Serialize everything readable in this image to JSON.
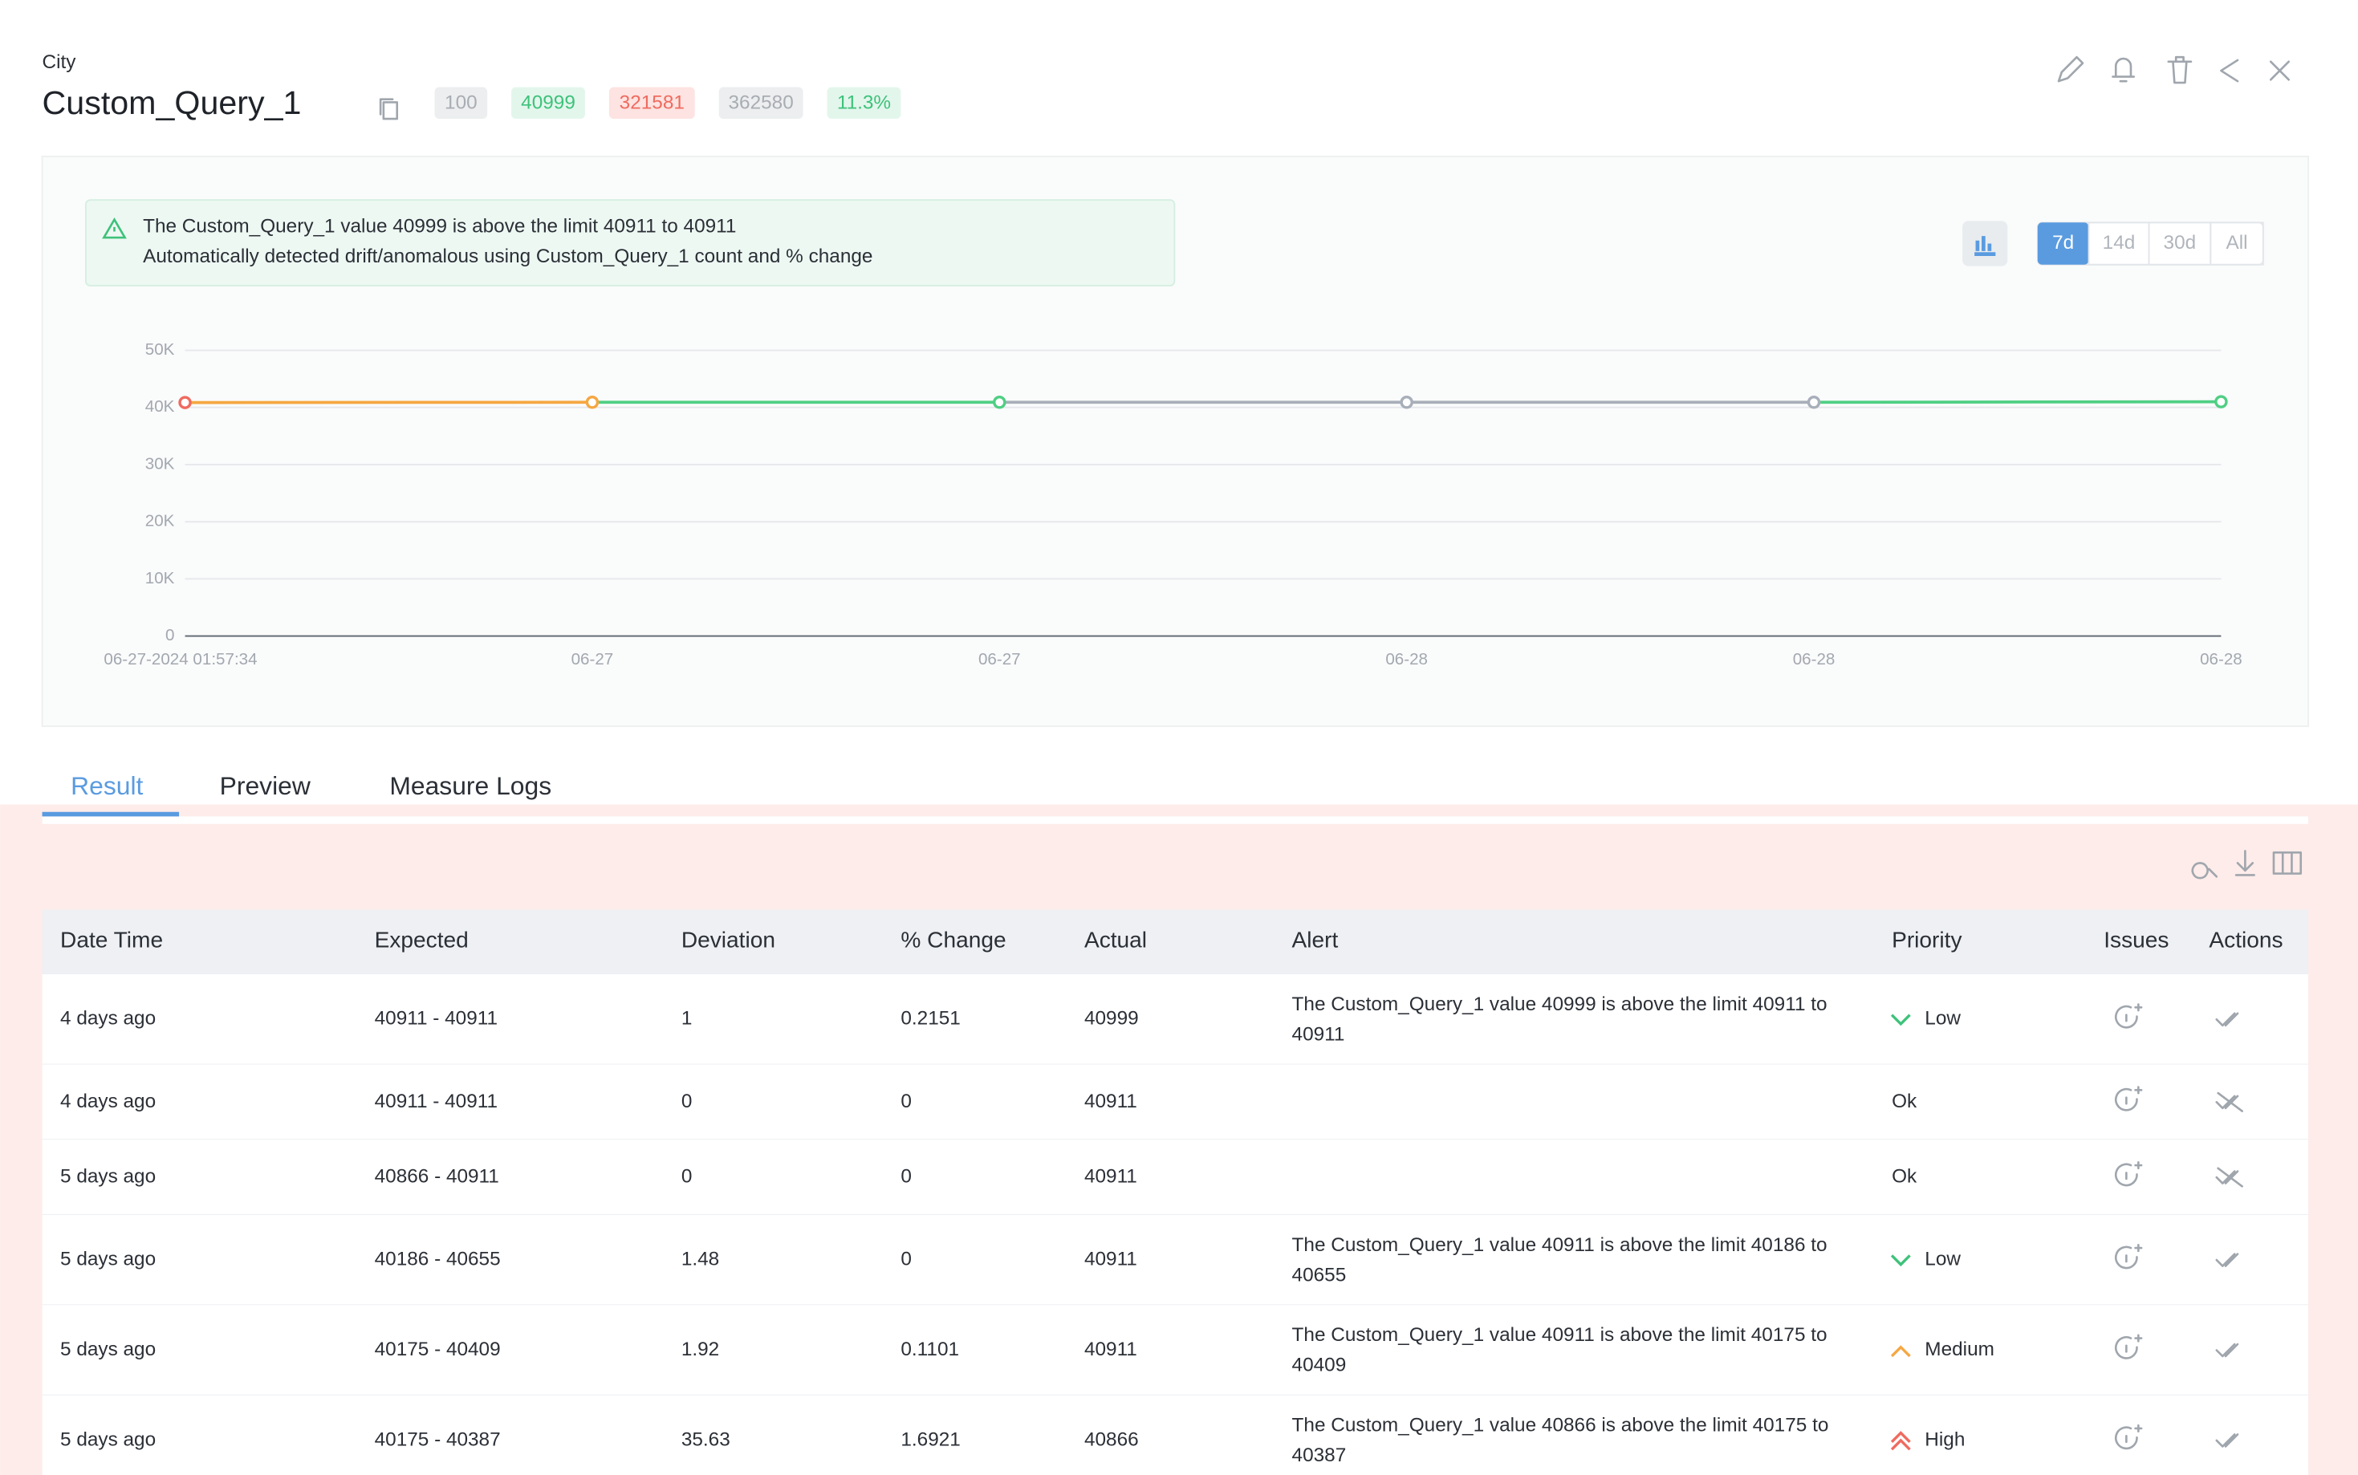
{
  "header": {
    "category": "City",
    "title": "Custom_Query_1",
    "badges": [
      "100",
      "40999",
      "321581",
      "362580",
      "11.3%"
    ]
  },
  "alert": {
    "lines": [
      "The Custom_Query_1 value 40999 is above the limit 40911 to 40911",
      "Automatically detected drift/anomalous using Custom_Query_1 count and % change"
    ]
  },
  "range_buttons": [
    "7d",
    "14d",
    "30d",
    "All"
  ],
  "chart_data": {
    "type": "line",
    "categories": [
      "06-27-2024 01:57:34",
      "06-27",
      "06-27",
      "06-28",
      "06-28",
      "06-28"
    ],
    "series": [
      {
        "values": [
          40866,
          40911,
          40911,
          40911,
          40911,
          40999
        ],
        "point_colors": [
          "#ef6b5f",
          "#f5a742",
          "#4fcf84",
          "#a8afba",
          "#a8afba",
          "#4fcf84"
        ]
      }
    ],
    "ylim": [
      0,
      50000
    ],
    "yticks": [
      0,
      {
        "value": 10000,
        "label": "10K"
      },
      {
        "value": 20000,
        "label": "20K"
      },
      {
        "value": 30000,
        "label": "30K"
      },
      {
        "value": 40000,
        "label": "40K"
      },
      {
        "value": 50000,
        "label": "50K"
      }
    ],
    "grid": true
  },
  "tabs": [
    "Result",
    "Preview",
    "Measure Logs"
  ],
  "table": {
    "columns": [
      "Date Time",
      "Expected",
      "Deviation",
      "% Change",
      "Actual",
      "Alert",
      "Priority",
      "Issues",
      "Actions"
    ],
    "rows": [
      [
        "4 days ago",
        "40911 - 40911",
        "1",
        "0.2151",
        "40999",
        "The Custom_Query_1 value 40999 is above the limit 40911 to 40911",
        "Low"
      ],
      [
        "4 days ago",
        "40911 - 40911",
        "0",
        "0",
        "40911",
        null,
        "Ok"
      ],
      [
        "5 days ago",
        "40866 - 40911",
        "0",
        "0",
        "40911",
        null,
        "Ok"
      ],
      [
        "5 days ago",
        "40186 - 40655",
        "1.48",
        "0",
        "40911",
        "The Custom_Query_1 value 40911 is above the limit 40186 to 40655",
        "Low"
      ],
      [
        "5 days ago",
        "40175 - 40409",
        "1.92",
        "0.1101",
        "40911",
        "The Custom_Query_1 value 40911 is above the limit 40175 to 40409",
        "Medium"
      ],
      [
        "5 days ago",
        "40175 - 40387",
        "35.63",
        "1.6921",
        "40866",
        "The Custom_Query_1 value 40866 is above the limit 40175 to 40387",
        "High"
      ]
    ]
  }
}
